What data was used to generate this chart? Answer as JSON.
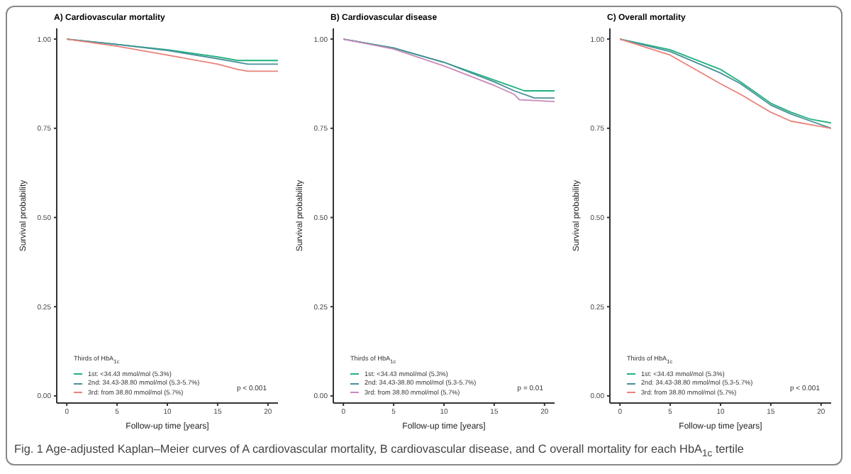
{
  "chart_data": [
    {
      "type": "line",
      "title": "A) Cardiovascular mortality",
      "xlabel": "Follow-up time [years]",
      "ylabel": "Survival probability",
      "legend_title": "Thirds of HbA$_{1c}$",
      "legend": "bottom left",
      "xlim": [
        -1,
        21
      ],
      "ylim": [
        -0.02,
        1.03
      ],
      "xticks": [
        0,
        5,
        10,
        15,
        20
      ],
      "yticks": [
        {
          "value": 0,
          "label": "0.00"
        },
        {
          "value": 0.25,
          "label": "0.25"
        },
        {
          "value": 0.5,
          "label": "0.50"
        },
        {
          "value": 0.75,
          "label": "0.75"
        },
        {
          "value": 1,
          "label": "1.00"
        }
      ],
      "series": [
        {
          "name": "1st: <34.43 mmol/mol (5.3%)",
          "color": "#1fb27e",
          "x": [
            0,
            5,
            10,
            15,
            17,
            18,
            21
          ],
          "values": [
            1,
            0.985,
            0.97,
            0.95,
            0.94,
            0.94,
            0.94
          ]
        },
        {
          "name": "2nd: 34.43-38.80 mmol/mol (5.3-5.7%)",
          "color": "#4a8f9a",
          "x": [
            0,
            5,
            10,
            15,
            17,
            18,
            21
          ],
          "values": [
            1,
            0.985,
            0.968,
            0.945,
            0.935,
            0.93,
            0.93
          ]
        },
        {
          "name": "3rd: from 38.80 mmol/mol (5.7%)",
          "color": "#e8837a",
          "x": [
            0,
            5,
            10,
            15,
            17,
            18,
            21
          ],
          "values": [
            1,
            0.98,
            0.955,
            0.93,
            0.915,
            0.91,
            0.91
          ]
        }
      ],
      "annotations": [
        "p < 0.001",
        "Fig. 1  Age-adjusted Kaplan–Meier curves of A cardiovascular mortality, B cardiovascular disease, and C overall mortality for each HbA$_{1c}$ tertile"
      ]
    },
    {
      "type": "line",
      "title": "B) Cardiovascular disease",
      "xlabel": "Follow-up time [years]",
      "ylabel": "Survival probability",
      "legend_title": "Thirds of HbA$_{1c}$",
      "legend": "bottom left",
      "xlim": [
        -1,
        21
      ],
      "ylim": [
        -0.02,
        1.03
      ],
      "xticks": [
        0,
        5,
        10,
        15,
        20
      ],
      "yticks": [
        {
          "value": 0,
          "label": "0.00"
        },
        {
          "value": 0.25,
          "label": "0.25"
        },
        {
          "value": 0.5,
          "label": "0.50"
        },
        {
          "value": 0.75,
          "label": "0.75"
        },
        {
          "value": 1,
          "label": "1.00"
        }
      ],
      "series": [
        {
          "name": "1st: <34.43 mmol/mol (5.3%)",
          "color": "#1fb27e",
          "x": [
            0,
            5,
            10,
            15,
            17,
            18,
            21
          ],
          "values": [
            1,
            0.975,
            0.935,
            0.885,
            0.865,
            0.855,
            0.855
          ]
        },
        {
          "name": "2nd: 34.43-38.80 mmol/mol (5.3-5.7%)",
          "color": "#4a8f9a",
          "x": [
            0,
            5,
            10,
            15,
            17,
            19,
            21
          ],
          "values": [
            1,
            0.975,
            0.935,
            0.88,
            0.855,
            0.835,
            0.835
          ]
        },
        {
          "name": "3rd: from 38.80 mmol/mol (5.7%)",
          "color": "#c98ab8",
          "x": [
            0,
            5,
            10,
            15,
            17,
            17.5,
            21
          ],
          "values": [
            1,
            0.972,
            0.925,
            0.87,
            0.845,
            0.83,
            0.825
          ]
        }
      ],
      "annotations": [
        "p = 0.01"
      ]
    },
    {
      "type": "line",
      "title": "C) Overall mortality",
      "xlabel": "Follow-up time [years]",
      "ylabel": "Survival probability",
      "legend_title": "Thirds of HbA$_{1c}$",
      "legend": "bottom left",
      "xlim": [
        -1,
        21
      ],
      "ylim": [
        -0.02,
        1.03
      ],
      "xticks": [
        0,
        5,
        10,
        15,
        20
      ],
      "yticks": [
        {
          "value": 0,
          "label": "0.00"
        },
        {
          "value": 0.25,
          "label": "0.25"
        },
        {
          "value": 0.5,
          "label": "0.50"
        },
        {
          "value": 0.75,
          "label": "0.75"
        },
        {
          "value": 1,
          "label": "1.00"
        }
      ],
      "series": [
        {
          "name": "1st: <34.43 mmol/mol (5.3%)",
          "color": "#1fb27e",
          "x": [
            0,
            5,
            10,
            12,
            15,
            17,
            19,
            21
          ],
          "values": [
            1,
            0.97,
            0.915,
            0.88,
            0.82,
            0.795,
            0.775,
            0.765
          ]
        },
        {
          "name": "2nd: 34.43-38.80 mmol/mol (5.3-5.7%)",
          "color": "#4a8f9a",
          "x": [
            0,
            5,
            10,
            12,
            15,
            17,
            19,
            21
          ],
          "values": [
            1,
            0.965,
            0.905,
            0.875,
            0.815,
            0.79,
            0.77,
            0.75
          ]
        },
        {
          "name": "3rd: from 38.80 mmol/mol (5.7%)",
          "color": "#e8837a",
          "x": [
            0,
            5,
            10,
            12,
            15,
            17,
            19,
            21
          ],
          "values": [
            1,
            0.955,
            0.875,
            0.845,
            0.795,
            0.77,
            0.76,
            0.75
          ]
        }
      ],
      "annotations": [
        "p < 0.001"
      ]
    }
  ]
}
